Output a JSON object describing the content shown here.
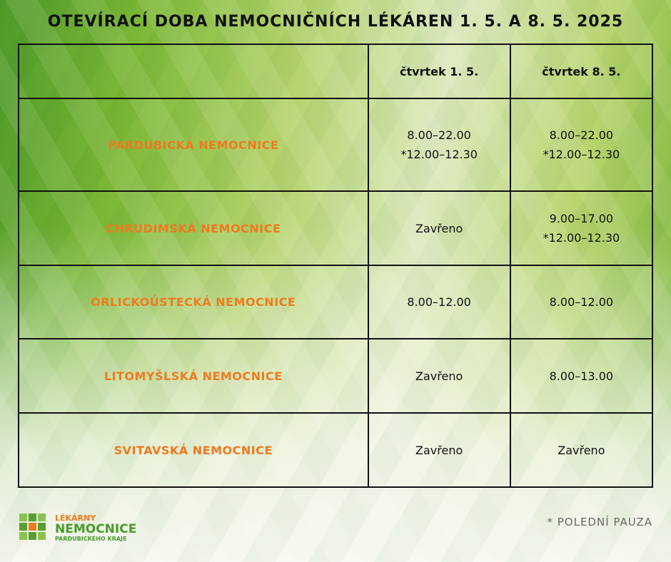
{
  "title": "OTEVÍRACÍ DOBA NEMOCNIČNÍCH LÉKÁREN 1. 5. A 8. 5. 2025",
  "table": {
    "headers": [
      "",
      "čtvrtek 1. 5.",
      "čtvrtek 8. 5."
    ],
    "rows": [
      {
        "name": "PARDUBICKÁ NEMOCNICE",
        "day1": [
          "8.00–22.00",
          "*12.00–12.30"
        ],
        "day2": [
          "8.00–22.00",
          "*12.00–12.30"
        ]
      },
      {
        "name": "CHRUDIMSKÁ NEMOCNICE",
        "day1": [
          "Zavřeno"
        ],
        "day2": [
          "9.00–17.00",
          "*12.00–12.30"
        ]
      },
      {
        "name": "ORLICKOÚSTECKÁ NEMOCNICE",
        "day1": [
          "8.00–12.00"
        ],
        "day2": [
          "8.00–12.00"
        ]
      },
      {
        "name": "LITOMYŠLSKÁ NEMOCNICE",
        "day1": [
          "Zavřeno"
        ],
        "day2": [
          "8.00–13.00"
        ]
      },
      {
        "name": "SVITAVSKÁ NEMOCNICE",
        "day1": [
          "Zavřeno"
        ],
        "day2": [
          "Zavřeno"
        ]
      }
    ]
  },
  "footnote": "* POLEDNÍ PAUZA",
  "logo": {
    "line1": "LÉKÁRNY",
    "line2": "NEMOCNICE",
    "line3": "PARDUBICKÉHO KRAJE"
  },
  "colors": {
    "accent": "#f07a1e",
    "brand_green": "#4a9a2c"
  }
}
